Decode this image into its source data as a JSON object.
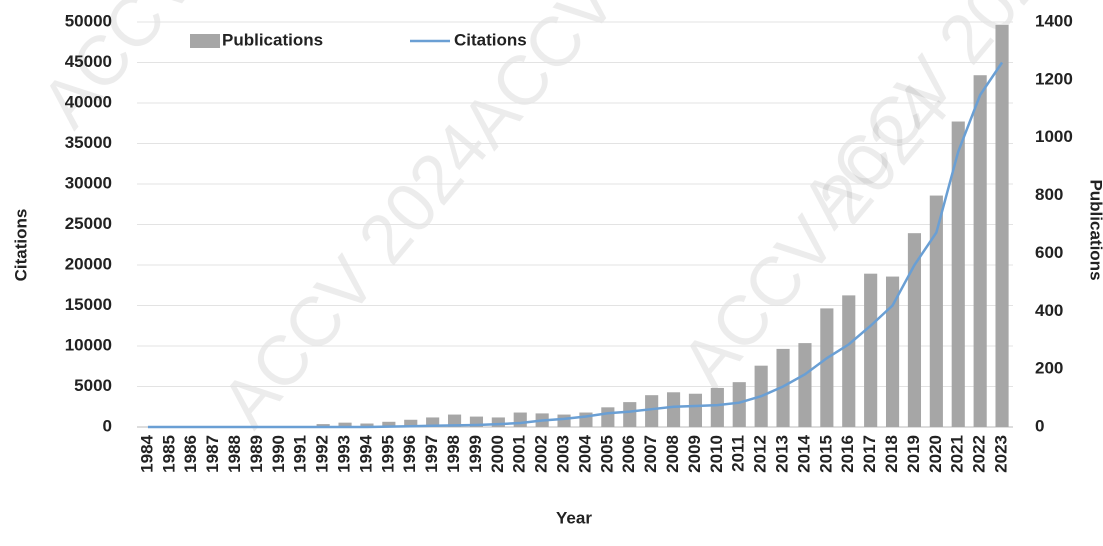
{
  "chart_data": {
    "type": "bar_line",
    "watermark": "ACCV 2024",
    "xlabel": "Year",
    "ylabel": "Citations",
    "y2label": "Publications",
    "categories": [
      "1984",
      "1985",
      "1986",
      "1987",
      "1988",
      "1989",
      "1990",
      "1991",
      "1992",
      "1993",
      "1994",
      "1995",
      "1996",
      "1997",
      "1998",
      "1999",
      "2000",
      "2001",
      "2002",
      "2003",
      "2004",
      "2005",
      "2006",
      "2007",
      "2008",
      "2009",
      "2010",
      "2011",
      "2012",
      "2013",
      "2014",
      "2015",
      "2016",
      "2017",
      "2018",
      "2019",
      "2020",
      "2021",
      "2022",
      "2023"
    ],
    "series": [
      {
        "name": "Publications",
        "type": "bar",
        "axis": "y2",
        "color": "#a6a6a6",
        "values": [
          0,
          0,
          0,
          0,
          0,
          0,
          0,
          0,
          10,
          15,
          12,
          18,
          25,
          33,
          43,
          36,
          33,
          50,
          47,
          43,
          50,
          68,
          86,
          110,
          120,
          115,
          135,
          155,
          212,
          270,
          290,
          410,
          455,
          530,
          520,
          670,
          800,
          1056,
          1216,
          1390
        ]
      },
      {
        "name": "Citations",
        "type": "line",
        "axis": "y",
        "color": "#6a9fd4",
        "values": [
          0,
          0,
          0,
          0,
          0,
          0,
          0,
          0,
          0,
          0,
          0,
          50,
          100,
          150,
          200,
          250,
          350,
          500,
          800,
          1000,
          1300,
          1700,
          1900,
          2200,
          2500,
          2600,
          2700,
          3000,
          3800,
          5000,
          6500,
          8500,
          10200,
          12500,
          15000,
          20000,
          24000,
          34000,
          41000,
          45000
        ]
      }
    ],
    "ylim": [
      0,
      50000
    ],
    "yticks": [
      0,
      5000,
      10000,
      15000,
      20000,
      25000,
      30000,
      35000,
      40000,
      45000,
      50000
    ],
    "y2lim": [
      0,
      1400
    ],
    "y2ticks": [
      0,
      200,
      400,
      600,
      800,
      1000,
      1200,
      1400
    ],
    "grid": true,
    "legend": "top-left"
  }
}
